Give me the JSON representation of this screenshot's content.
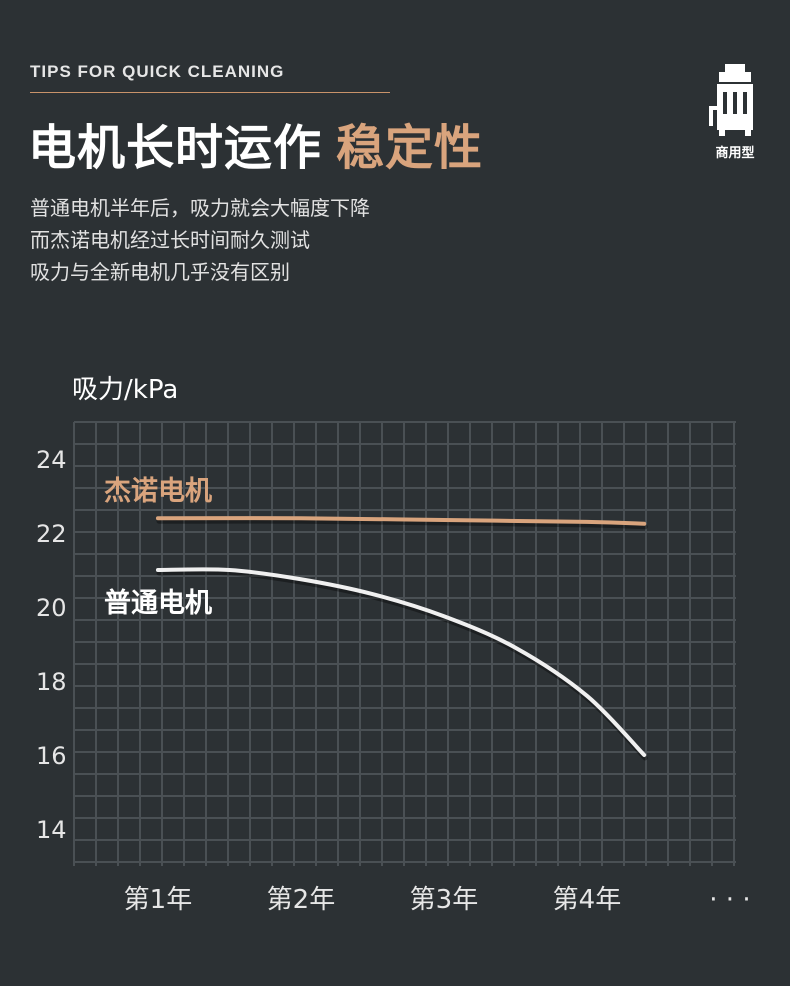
{
  "header": {
    "tips_label": "TIPS FOR QUICK CLEANING",
    "title_main": "电机长时运作",
    "title_accent": "稳定性",
    "description_lines": [
      "普通电机半年后，吸力就会大幅度下降",
      "而杰诺电机经过长时间耐久测试",
      "吸力与全新电机几乎没有区别"
    ]
  },
  "badge": {
    "icon": "commercial-vacuum-icon",
    "label": "商用型"
  },
  "colors": {
    "background": "#2c3134",
    "accent": "#d9a47d",
    "grid": "#4a5054",
    "white_line": "#f0f0f0"
  },
  "chart_data": {
    "type": "line",
    "ylabel": "吸力/kPa",
    "yticks": [
      24,
      22,
      20,
      18,
      16,
      14
    ],
    "ylim": [
      13,
      25
    ],
    "categories": [
      "第1年",
      "第2年",
      "第3年",
      "第4年",
      "· · ·"
    ],
    "grid": true,
    "series": [
      {
        "name": "杰诺电机",
        "color": "#d9a47d",
        "points": [
          [
            0.65,
            22.4
          ],
          [
            1.65,
            22.4
          ],
          [
            2.65,
            22.35
          ],
          [
            3.65,
            22.3
          ],
          [
            4.05,
            22.25
          ]
        ]
      },
      {
        "name": "普通电机",
        "color": "#f0f0f0",
        "points": [
          [
            0.65,
            21.0
          ],
          [
            1.15,
            21.0
          ],
          [
            1.65,
            20.75
          ],
          [
            2.15,
            20.35
          ],
          [
            2.65,
            19.75
          ],
          [
            3.15,
            18.9
          ],
          [
            3.65,
            17.6
          ],
          [
            4.05,
            16.0
          ]
        ]
      }
    ]
  }
}
